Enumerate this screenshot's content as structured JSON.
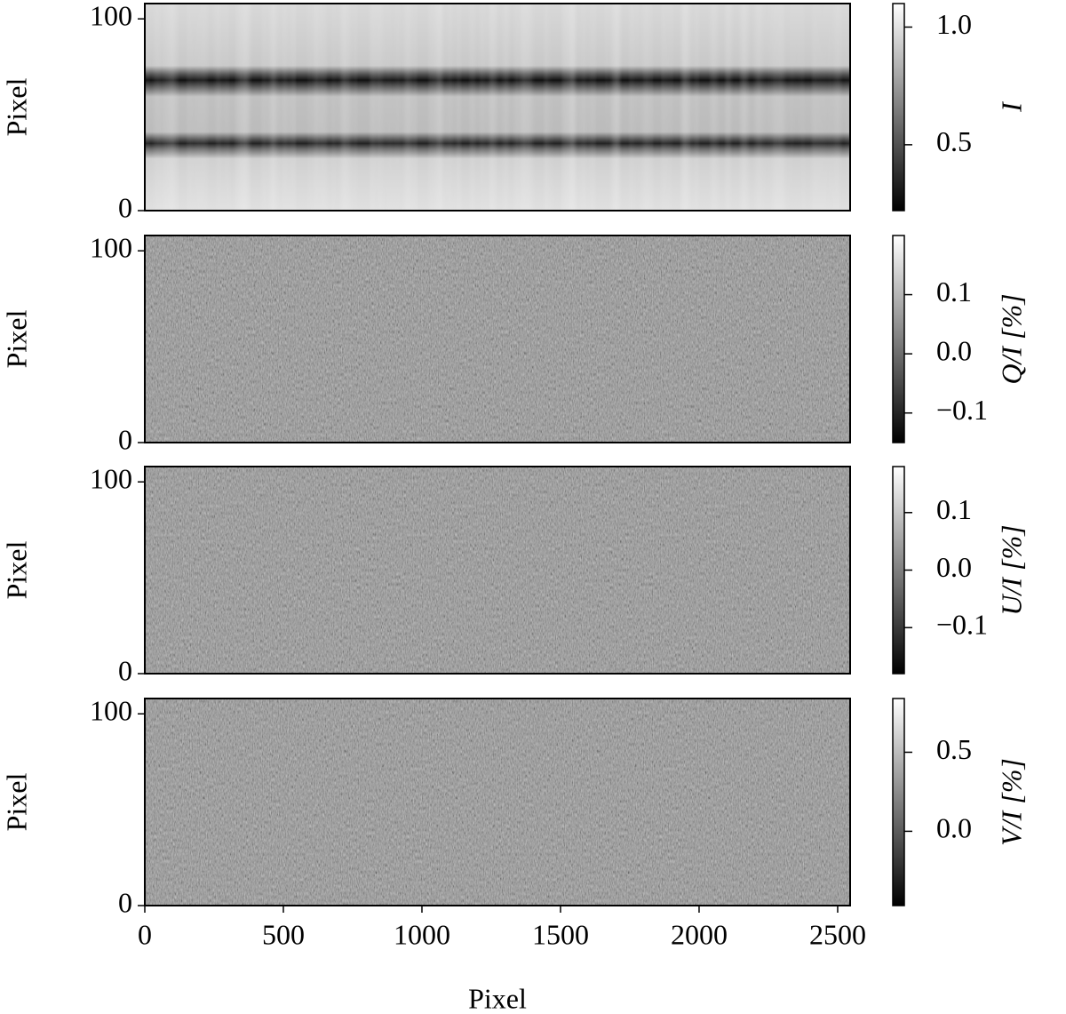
{
  "chart_data": [
    {
      "type": "heatmap",
      "ylabel": "Pixel",
      "xlim": [
        0,
        2545
      ],
      "ylim": [
        0,
        108
      ],
      "yticks": [
        0,
        100
      ],
      "colorbar": {
        "label": "I",
        "lim": [
          0.22,
          1.1
        ],
        "ticks": [
          {
            "value": 0.5,
            "label": "0.5"
          },
          {
            "value": 1.0,
            "label": "1.0"
          }
        ]
      }
    },
    {
      "type": "heatmap",
      "ylabel": "Pixel",
      "xlim": [
        0,
        2545
      ],
      "ylim": [
        0,
        108
      ],
      "yticks": [
        0,
        100
      ],
      "colorbar": {
        "label": "Q/I [%]",
        "lim": [
          -0.15,
          0.2
        ],
        "ticks": [
          {
            "value": -0.1,
            "label": "−0.1"
          },
          {
            "value": 0.0,
            "label": "0.0"
          },
          {
            "value": 0.1,
            "label": "0.1"
          }
        ]
      }
    },
    {
      "type": "heatmap",
      "ylabel": "Pixel",
      "xlim": [
        0,
        2545
      ],
      "ylim": [
        0,
        108
      ],
      "yticks": [
        0,
        100
      ],
      "colorbar": {
        "label": "U/I [%]",
        "lim": [
          -0.18,
          0.18
        ],
        "ticks": [
          {
            "value": -0.1,
            "label": "−0.1"
          },
          {
            "value": 0.0,
            "label": "0.0"
          },
          {
            "value": 0.1,
            "label": "0.1"
          }
        ]
      }
    },
    {
      "type": "heatmap",
      "ylabel": "Pixel",
      "xlabel": "Pixel",
      "xlim": [
        0,
        2545
      ],
      "ylim": [
        0,
        108
      ],
      "yticks": [
        0,
        100
      ],
      "xticks": [
        0,
        500,
        1000,
        1500,
        2000,
        2500
      ],
      "colorbar": {
        "label": "V/I [%]",
        "lim": [
          -0.47,
          0.84
        ],
        "ticks": [
          {
            "value": 0.0,
            "label": "0.0"
          },
          {
            "value": 0.5,
            "label": "0.5"
          }
        ]
      }
    }
  ]
}
